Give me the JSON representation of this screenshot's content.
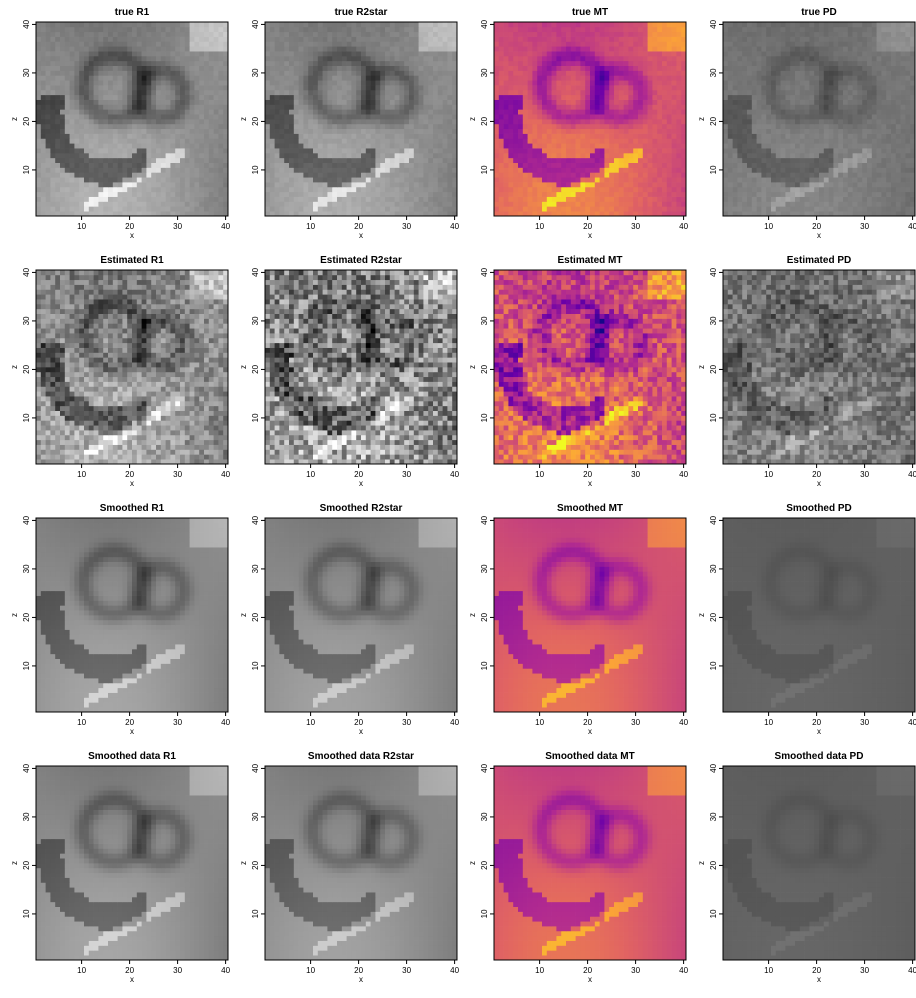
{
  "figure": {
    "grid": {
      "rows": 4,
      "cols": 4
    },
    "axis": {
      "xlabel": "x",
      "ylabel": "z",
      "xticks": [
        10,
        20,
        30,
        40
      ],
      "yticks": [
        10,
        20,
        30,
        40
      ],
      "xlim": [
        0.5,
        40.5
      ],
      "ylim": [
        0.5,
        40.5
      ]
    },
    "colormaps": {
      "gray": [
        "#000000",
        "#ffffff"
      ],
      "plasma": [
        "#0d0887",
        "#6a00a8",
        "#b12a90",
        "#e16462",
        "#fca636",
        "#f0f921"
      ]
    },
    "panels": [
      {
        "title": "true R1",
        "colormap": "gray",
        "style": "true",
        "variant": "r1"
      },
      {
        "title": "true R2star",
        "colormap": "gray",
        "style": "true",
        "variant": "r2"
      },
      {
        "title": "true MT",
        "colormap": "plasma",
        "style": "true",
        "variant": "mt"
      },
      {
        "title": "true PD",
        "colormap": "gray",
        "style": "true",
        "variant": "pd"
      },
      {
        "title": "Estimated R1",
        "colormap": "gray",
        "style": "estimated",
        "variant": "r1"
      },
      {
        "title": "Estimated R2star",
        "colormap": "gray",
        "style": "estimated",
        "variant": "r2"
      },
      {
        "title": "Estimated MT",
        "colormap": "plasma",
        "style": "estimated",
        "variant": "mt"
      },
      {
        "title": "Estimated PD",
        "colormap": "gray",
        "style": "estimated",
        "variant": "pd"
      },
      {
        "title": "Smoothed R1",
        "colormap": "gray",
        "style": "smoothed",
        "variant": "r1"
      },
      {
        "title": "Smoothed R2star",
        "colormap": "gray",
        "style": "smoothed",
        "variant": "r2"
      },
      {
        "title": "Smoothed MT",
        "colormap": "plasma",
        "style": "smoothed",
        "variant": "mt"
      },
      {
        "title": "Smoothed PD",
        "colormap": "gray",
        "style": "smoothed",
        "variant": "pd"
      },
      {
        "title": "Smoothed data R1",
        "colormap": "gray",
        "style": "smoothed",
        "variant": "r1"
      },
      {
        "title": "Smoothed data R2star",
        "colormap": "gray",
        "style": "smoothed",
        "variant": "r2"
      },
      {
        "title": "Smoothed data MT",
        "colormap": "plasma",
        "style": "smoothed",
        "variant": "mt"
      },
      {
        "title": "Smoothed data PD",
        "colormap": "gray",
        "style": "smoothed",
        "variant": "pd"
      }
    ]
  }
}
